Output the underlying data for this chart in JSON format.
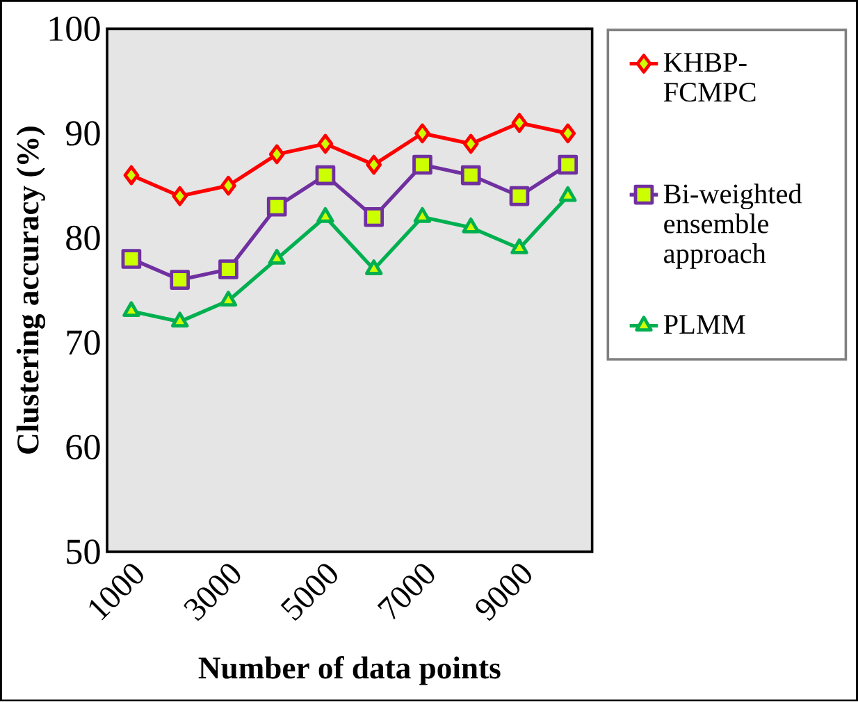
{
  "chart_data": {
    "type": "line",
    "xlabel": "Number of data points",
    "ylabel": "Clustering accuracy (%)",
    "categories": [
      "1000",
      null,
      "3000",
      null,
      "5000",
      null,
      "7000",
      null,
      "9000",
      null
    ],
    "ylim": [
      50,
      100
    ],
    "yticks": [
      50,
      60,
      70,
      80,
      90,
      100
    ],
    "grid": false,
    "legend": "right",
    "series": [
      {
        "name": "KHBP-FCMPC",
        "color": "#ff0000",
        "marker": "diamond",
        "values": [
          86,
          84,
          85,
          88,
          89,
          87,
          90,
          89,
          91,
          90
        ]
      },
      {
        "name": "Bi-weighted ensemble approach",
        "color": "#7030a0",
        "marker": "square",
        "values": [
          78,
          76,
          77,
          83,
          86,
          82,
          87,
          86,
          84,
          87
        ]
      },
      {
        "name": "PLMM",
        "color": "#00b050",
        "marker": "triangle",
        "values": [
          73,
          72,
          74,
          78,
          82,
          77,
          82,
          81,
          79,
          84
        ]
      }
    ]
  }
}
